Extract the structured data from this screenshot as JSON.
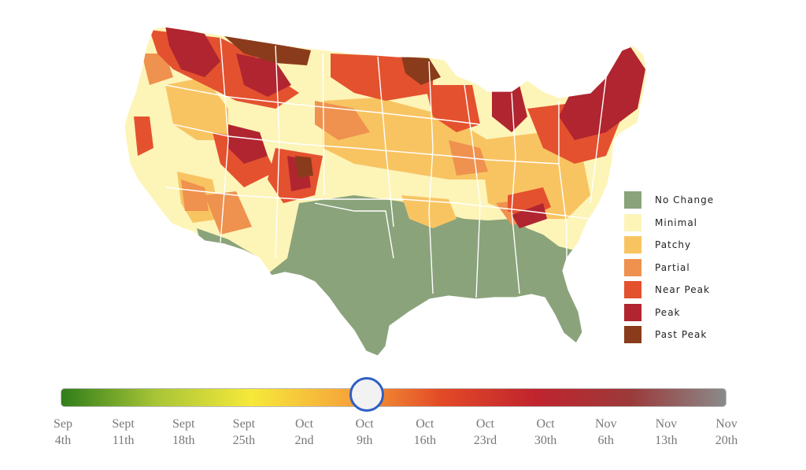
{
  "legend": {
    "items": [
      {
        "label": "No Change",
        "color": "#8aa37b"
      },
      {
        "label": "Minimal",
        "color": "#fdf4b8"
      },
      {
        "label": "Patchy",
        "color": "#f8c462"
      },
      {
        "label": "Partial",
        "color": "#ef914f"
      },
      {
        "label": "Near Peak",
        "color": "#e4512f"
      },
      {
        "label": "Peak",
        "color": "#b02530"
      },
      {
        "label": "Past Peak",
        "color": "#8a3b1b"
      }
    ]
  },
  "timeline": {
    "gradient": [
      "#2f7d1a",
      "#a8c536",
      "#f6e93a",
      "#f6a73a",
      "#e34a26",
      "#c0242e",
      "#9b3a3a",
      "#8a8a8a"
    ],
    "selected_index": 5,
    "ticks": [
      {
        "line1": "Sep",
        "line2": "4th"
      },
      {
        "line1": "Sept",
        "line2": "11th"
      },
      {
        "line1": "Sept",
        "line2": "18th"
      },
      {
        "line1": "Sept",
        "line2": "25th"
      },
      {
        "line1": "Oct",
        "line2": "2nd"
      },
      {
        "line1": "Oct",
        "line2": "9th"
      },
      {
        "line1": "Oct",
        "line2": "16th"
      },
      {
        "line1": "Oct",
        "line2": "23rd"
      },
      {
        "line1": "Oct",
        "line2": "30th"
      },
      {
        "line1": "Nov",
        "line2": "6th"
      },
      {
        "line1": "Nov",
        "line2": "13th"
      },
      {
        "line1": "Nov",
        "line2": "20th"
      }
    ]
  }
}
